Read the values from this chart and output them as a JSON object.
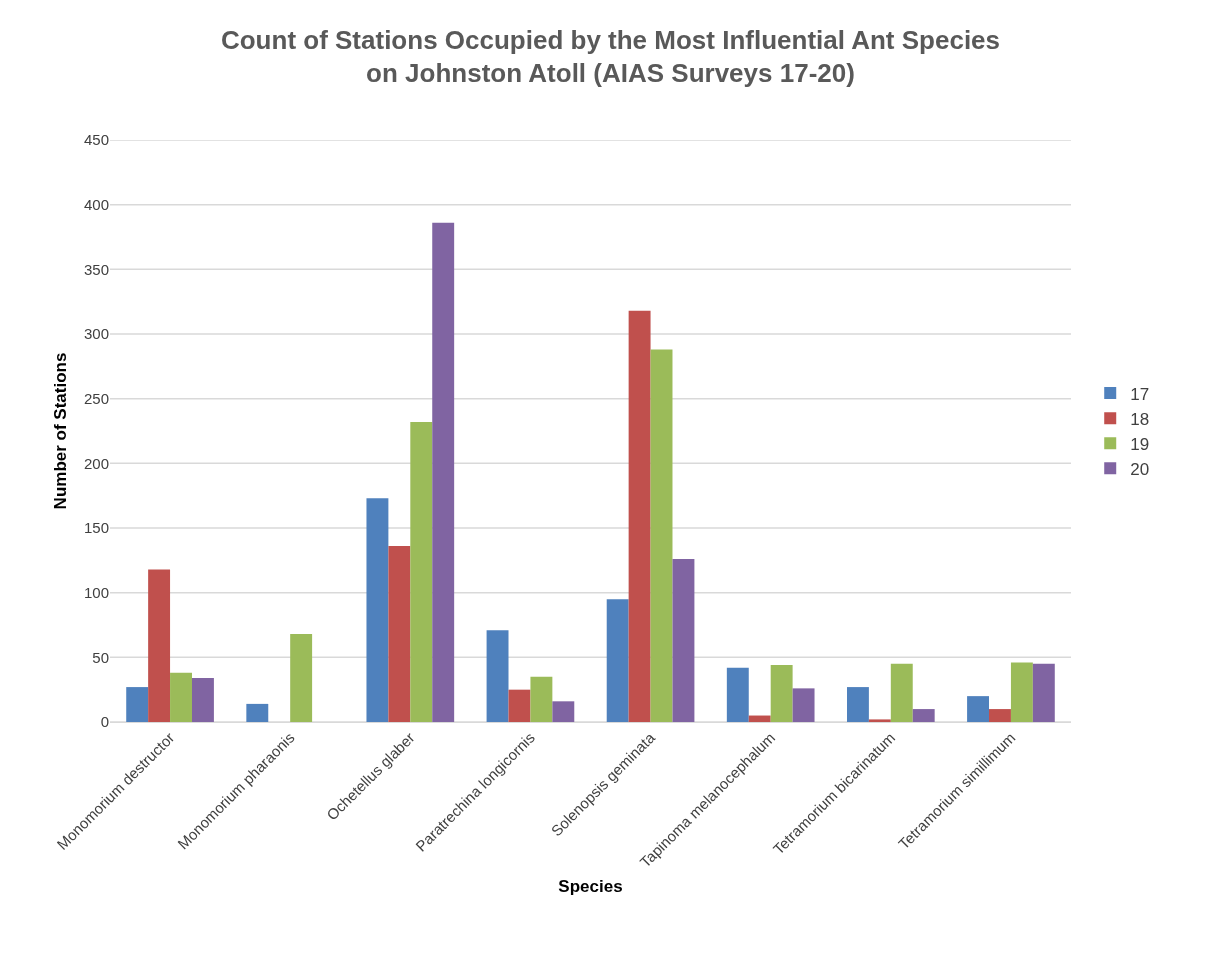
{
  "chart_data": {
    "type": "bar",
    "title": "Count of Stations Occupied by the Most Influential Ant Species\non Johnston Atoll (AIAS Surveys 17-20)",
    "xlabel": "Species",
    "ylabel": "Number of Stations",
    "categories": [
      "Monomorium destructor",
      "Monomorium pharaonis",
      "Ochetellus glaber",
      "Paratrechina longicornis",
      "Solenopsis geminata",
      "Tapinoma melanocephalum",
      "Tetramorium bicarinatum",
      "Tetramorium simillimum"
    ],
    "series": [
      {
        "name": "17",
        "color": "#4f81bd",
        "values": [
          27,
          14,
          173,
          71,
          95,
          42,
          27,
          20
        ]
      },
      {
        "name": "18",
        "color": "#c0504d",
        "values": [
          118,
          null,
          136,
          25,
          318,
          5,
          2,
          10
        ]
      },
      {
        "name": "19",
        "color": "#9bbb59",
        "values": [
          38,
          68,
          232,
          35,
          288,
          44,
          45,
          46
        ]
      },
      {
        "name": "20",
        "color": "#8064a2",
        "values": [
          34,
          null,
          386,
          16,
          126,
          26,
          10,
          45
        ]
      }
    ],
    "ylim": [
      0,
      450
    ],
    "yticks": [
      0,
      50,
      100,
      150,
      200,
      250,
      300,
      350,
      400,
      450
    ],
    "grid": "y",
    "legend": "right"
  }
}
